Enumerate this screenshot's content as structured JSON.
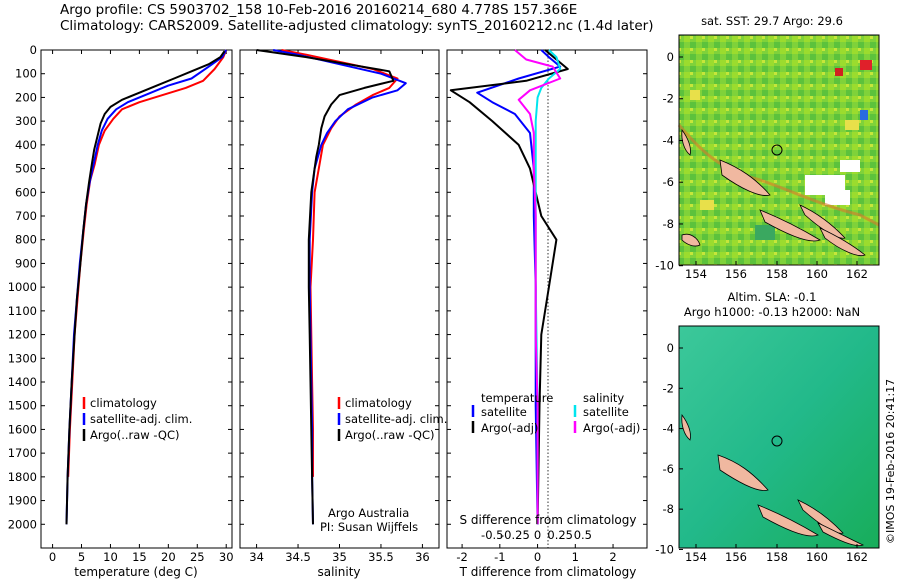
{
  "header": {
    "line1": "Argo profile: CS 5903702_158 10-Feb-2016 20160214_680 4.778S 157.366E",
    "line2": "Climatology: CARS2009. Satellite-adjusted climatology: synTS_20160212.nc (1.4d later)"
  },
  "credit": "©IMOS 19-Feb-2016 20:41:17",
  "map_top": {
    "title": "sat. SST: 29.7 Argo: 29.6",
    "xticks": [
      "154",
      "156",
      "158",
      "160",
      "162"
    ],
    "yticks": [
      "0",
      "-2",
      "-4",
      "-6",
      "-8",
      "-10"
    ]
  },
  "map_bottom": {
    "title1": "Altim. SLA: -0.1",
    "title2": "Argo h1000: -0.13 h2000: NaN",
    "xticks": [
      "154",
      "156",
      "158",
      "160",
      "162"
    ],
    "yticks": [
      "0",
      "-2",
      "-4",
      "-6",
      "-8",
      "-10"
    ]
  },
  "panel_notes": {
    "org": "Argo Australia",
    "pi": "PI: Susan Wijffels"
  },
  "colors": {
    "climatology": "#ff0000",
    "satellite": "#0000ff",
    "argo": "#000000",
    "s_satellite": "#00e5ee",
    "s_argo": "#ff00ff"
  },
  "chart_data": [
    {
      "type": "line",
      "xlabel": "temperature (deg C)",
      "xlim": [
        -2,
        31
      ],
      "xticks": [
        0,
        5,
        10,
        15,
        20,
        25,
        30
      ],
      "ylim": [
        2100,
        0
      ],
      "yticks": [
        0,
        100,
        200,
        300,
        400,
        500,
        600,
        700,
        800,
        900,
        1000,
        1100,
        1200,
        1300,
        1400,
        1500,
        1600,
        1700,
        1800,
        1900,
        2000
      ],
      "legend": [
        "climatology",
        "satellite-adj. clim.",
        "Argo(..raw -QC)"
      ],
      "series": [
        {
          "name": "climatology",
          "color": "#ff0000",
          "points": [
            [
              30,
              0
            ],
            [
              29.5,
              30
            ],
            [
              28,
              80
            ],
            [
              26,
              130
            ],
            [
              23,
              160
            ],
            [
              19,
              190
            ],
            [
              15,
              220
            ],
            [
              12,
              250
            ],
            [
              10.5,
              290
            ],
            [
              9,
              340
            ],
            [
              8,
              400
            ],
            [
              7.3,
              480
            ],
            [
              6.5,
              550
            ],
            [
              5.9,
              650
            ],
            [
              5.4,
              760
            ],
            [
              4.8,
              900
            ],
            [
              4.3,
              1050
            ],
            [
              3.8,
              1200
            ],
            [
              3.4,
              1400
            ],
            [
              3.0,
              1600
            ],
            [
              2.7,
              1800
            ]
          ]
        },
        {
          "name": "satellite-adj. clim.",
          "color": "#0000ff",
          "points": [
            [
              30,
              0
            ],
            [
              29.3,
              30
            ],
            [
              27,
              70
            ],
            [
              24,
              120
            ],
            [
              20,
              150
            ],
            [
              16,
              190
            ],
            [
              13,
              220
            ],
            [
              11,
              250
            ],
            [
              9.5,
              290
            ],
            [
              8.5,
              340
            ],
            [
              7.8,
              400
            ],
            [
              7.1,
              480
            ],
            [
              6.4,
              560
            ],
            [
              5.8,
              650
            ],
            [
              5.3,
              760
            ],
            [
              4.7,
              900
            ],
            [
              4.2,
              1050
            ],
            [
              3.7,
              1200
            ],
            [
              3.3,
              1400
            ],
            [
              2.9,
              1600
            ],
            [
              2.6,
              1800
            ],
            [
              2.4,
              2000
            ]
          ]
        },
        {
          "name": "Argo(..raw -QC)",
          "color": "#000000",
          "points": [
            [
              29.7,
              5
            ],
            [
              29,
              30
            ],
            [
              27,
              60
            ],
            [
              24,
              90
            ],
            [
              21,
              120
            ],
            [
              18,
              150
            ],
            [
              15,
              180
            ],
            [
              12,
              210
            ],
            [
              10,
              240
            ],
            [
              9,
              270
            ],
            [
              8.3,
              310
            ],
            [
              7.8,
              360
            ],
            [
              7.2,
              420
            ],
            [
              6.8,
              480
            ],
            [
              6.3,
              560
            ],
            [
              5.8,
              650
            ],
            [
              5.3,
              760
            ],
            [
              4.8,
              900
            ],
            [
              4.2,
              1050
            ],
            [
              3.8,
              1200
            ],
            [
              3.3,
              1400
            ],
            [
              2.9,
              1600
            ],
            [
              2.6,
              1800
            ],
            [
              2.4,
              2000
            ]
          ]
        }
      ]
    },
    {
      "type": "line",
      "xlabel": "salinity",
      "xlim": [
        33.8,
        36.2
      ],
      "xticks": [
        34,
        34.5,
        35,
        35.5,
        36
      ],
      "ylim": [
        2100,
        0
      ],
      "legend": [
        "climatology",
        "satellite-adj. clim.",
        "Argo(..raw -QC)"
      ],
      "series": [
        {
          "name": "climatology",
          "color": "#ff0000",
          "points": [
            [
              34.3,
              0
            ],
            [
              34.6,
              20
            ],
            [
              35.0,
              50
            ],
            [
              35.4,
              80
            ],
            [
              35.7,
              120
            ],
            [
              35.6,
              160
            ],
            [
              35.4,
              190
            ],
            [
              35.2,
              230
            ],
            [
              35.0,
              280
            ],
            [
              34.9,
              330
            ],
            [
              34.8,
              400
            ],
            [
              34.75,
              500
            ],
            [
              34.7,
              600
            ],
            [
              34.68,
              800
            ],
            [
              34.65,
              1000
            ],
            [
              34.66,
              1200
            ],
            [
              34.67,
              1400
            ],
            [
              34.68,
              1600
            ],
            [
              34.68,
              1800
            ]
          ]
        },
        {
          "name": "satellite-adj. clim.",
          "color": "#0000ff",
          "points": [
            [
              34.2,
              0
            ],
            [
              34.5,
              20
            ],
            [
              35.0,
              60
            ],
            [
              35.5,
              100
            ],
            [
              35.8,
              140
            ],
            [
              35.7,
              170
            ],
            [
              35.4,
              200
            ],
            [
              35.1,
              250
            ],
            [
              34.95,
              300
            ],
            [
              34.85,
              350
            ],
            [
              34.78,
              400
            ],
            [
              34.7,
              500
            ],
            [
              34.67,
              600
            ],
            [
              34.64,
              800
            ],
            [
              34.64,
              1000
            ],
            [
              34.65,
              1200
            ],
            [
              34.66,
              1400
            ],
            [
              34.67,
              1600
            ],
            [
              34.67,
              1800
            ],
            [
              34.68,
              2000
            ]
          ]
        },
        {
          "name": "Argo(..raw -QC)",
          "color": "#000000",
          "points": [
            [
              34.0,
              0
            ],
            [
              34.2,
              10
            ],
            [
              34.6,
              30
            ],
            [
              35.1,
              60
            ],
            [
              35.6,
              90
            ],
            [
              35.65,
              130
            ],
            [
              35.3,
              160
            ],
            [
              35.0,
              190
            ],
            [
              34.9,
              230
            ],
            [
              34.82,
              280
            ],
            [
              34.78,
              330
            ],
            [
              34.75,
              400
            ],
            [
              34.72,
              450
            ],
            [
              34.7,
              500
            ],
            [
              34.66,
              600
            ],
            [
              34.63,
              800
            ],
            [
              34.63,
              1000
            ],
            [
              34.64,
              1200
            ],
            [
              34.65,
              1400
            ],
            [
              34.66,
              1600
            ],
            [
              34.67,
              1800
            ],
            [
              34.68,
              2000
            ]
          ]
        }
      ]
    },
    {
      "type": "line",
      "xlabel": "T difference from climatology",
      "xlabel_top": "S difference from climatology",
      "xlim": [
        -2.4,
        2.9
      ],
      "xticks": [
        -2,
        -1,
        0,
        1,
        2
      ],
      "xticks_top": [
        {
          "value": -0.5,
          "label": "-0.5"
        },
        {
          "value": -0.25,
          "label": "-0.25"
        },
        {
          "value": 0,
          "label": "0"
        },
        {
          "value": 0.25,
          "label": "0.25"
        },
        {
          "value": 0.5,
          "label": "0.5"
        }
      ],
      "ylim": [
        2100,
        0
      ],
      "legend_temperature": {
        "title": "temperature",
        "items": [
          "satellite",
          "Argo(-adj)"
        ]
      },
      "legend_salinity": {
        "title": "salinity",
        "items": [
          "satellite",
          "Argo(-adj)"
        ]
      },
      "series": [
        {
          "name": "satellite",
          "group": "temperature",
          "color": "#0000ff",
          "points": [
            [
              0.1,
              0
            ],
            [
              0.3,
              30
            ],
            [
              0.6,
              70
            ],
            [
              -0.5,
              120
            ],
            [
              -1.6,
              180
            ],
            [
              -1.2,
              220
            ],
            [
              -0.6,
              270
            ],
            [
              -0.2,
              350
            ],
            [
              -0.1,
              500
            ],
            [
              -0.1,
              700
            ],
            [
              -0.05,
              1000
            ],
            [
              -0.05,
              1500
            ],
            [
              0,
              2000
            ]
          ]
        },
        {
          "name": "Argo(-adj)",
          "group": "temperature",
          "color": "#000000",
          "points": [
            [
              0.2,
              0
            ],
            [
              0.5,
              40
            ],
            [
              0.8,
              80
            ],
            [
              -0.3,
              130
            ],
            [
              -2.3,
              170
            ],
            [
              -1.8,
              220
            ],
            [
              -1.2,
              300
            ],
            [
              -0.5,
              400
            ],
            [
              -0.2,
              500
            ],
            [
              0.1,
              700
            ],
            [
              0.5,
              800
            ],
            [
              0.3,
              1000
            ],
            [
              0.1,
              1200
            ],
            [
              0.05,
              1500
            ],
            [
              0,
              2000
            ]
          ]
        },
        {
          "name": "satellite",
          "group": "salinity",
          "color": "#00e5ee",
          "points": [
            [
              0.3,
              0
            ],
            [
              0.5,
              30
            ],
            [
              0.6,
              80
            ],
            [
              0.3,
              120
            ],
            [
              0.1,
              160
            ],
            [
              0,
              200
            ],
            [
              -0.05,
              300
            ],
            [
              -0.05,
              400
            ],
            [
              -0.05,
              600
            ],
            [
              -0.05,
              1000
            ],
            [
              0,
              1500
            ],
            [
              0,
              2000
            ]
          ]
        },
        {
          "name": "Argo(-adj)",
          "group": "salinity",
          "color": "#ff00ff",
          "points": [
            [
              -0.6,
              0
            ],
            [
              -0.3,
              40
            ],
            [
              0.4,
              70
            ],
            [
              0.6,
              120
            ],
            [
              -0.2,
              170
            ],
            [
              -0.5,
              210
            ],
            [
              -0.2,
              270
            ],
            [
              -0.1,
              350
            ],
            [
              -0.1,
              500
            ],
            [
              -0.05,
              700
            ],
            [
              -0.05,
              1000
            ],
            [
              -0.05,
              1200
            ],
            [
              0,
              1500
            ],
            [
              0,
              2000
            ]
          ]
        }
      ]
    }
  ]
}
